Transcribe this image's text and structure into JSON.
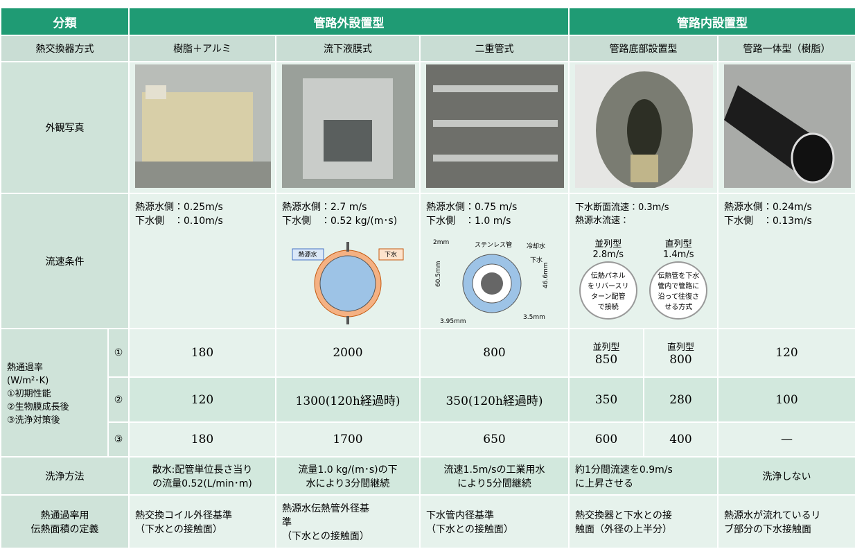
{
  "header": {
    "classification": "分類",
    "outside": "管路外設置型",
    "inside": "管路内設置型"
  },
  "columns": [
    "熱交換器方式",
    "樹脂＋アルミ",
    "流下液膜式",
    "二重管式",
    "管路底部設置型",
    "管路一体型（樹脂）"
  ],
  "photo": {
    "label": "外観写真"
  },
  "flow": {
    "label": "流速条件",
    "cells": [
      "熱源水側：0.25m/s\n下水側　：0.10m/s",
      "熱源水側：2.7 m/s\n下水側　：0.52 kg/(m･s)",
      "熱源水側：0.75 m/s\n下水側　：1.0 m/s",
      "下水断面流速：0.3m/s\n熱源水流速：",
      "熱源水側：0.24m/s\n下水側　：0.13m/s"
    ],
    "sub": [
      {
        "type": "並列型",
        "speed": "2.8m/s",
        "desc": "伝熱パネル\nをリバースリ\nターン配管\nで接続"
      },
      {
        "type": "直列型",
        "speed": "1.4m/s",
        "desc": "伝熱管を下水\n管内で管路に\n沿って往復さ\nせる方式"
      }
    ],
    "diagram1": {
      "left": "熱源水",
      "right": "下水"
    },
    "diagram2": {
      "pipe": "ステンレス管",
      "cool": "冷却水",
      "sewage": "下水",
      "gap": "2mm",
      "outer": "60.5mm",
      "inner": "46.6mm",
      "wall1": "3.95mm",
      "wall2": "3.5mm"
    }
  },
  "k": {
    "label": "熱通過率\n(W/m²･K)\n①初期性能\n②生物膜成長後\n③洗浄対策後",
    "markers": [
      "①",
      "②",
      "③"
    ],
    "sub": [
      "並列型",
      "直列型"
    ],
    "rows": [
      [
        180,
        2000,
        800,
        850,
        800,
        120
      ],
      [
        120,
        "1300(120h経過時)",
        "350(120h経過時)",
        350,
        280,
        100
      ],
      [
        180,
        1700,
        650,
        600,
        400,
        "—"
      ]
    ]
  },
  "wash": {
    "label": "洗浄方法",
    "cells": [
      "散水:配管単位長さ当り\nの流量0.52(L/min･m)",
      "流量1.0 kg/(m･s)の下\n水により3分間継続",
      "流速1.5m/sの工業用水\nにより5分間継続",
      "約1分間流速を0.9m/s\nに上昇させる",
      "洗浄しない"
    ]
  },
  "area": {
    "label": "熱通過率用\n伝熱面積の定義",
    "cells": [
      "熱交換コイル外径基準\n（下水との接触面）",
      "熱源水伝熱管外径基\n準\n（下水との接触面）",
      "下水管内径基準\n（下水との接触面）",
      "熱交換器と下水との接\n触面（外径の上半分）",
      "熱源水が流れているリ\nブ部分の下水接触面"
    ]
  }
}
